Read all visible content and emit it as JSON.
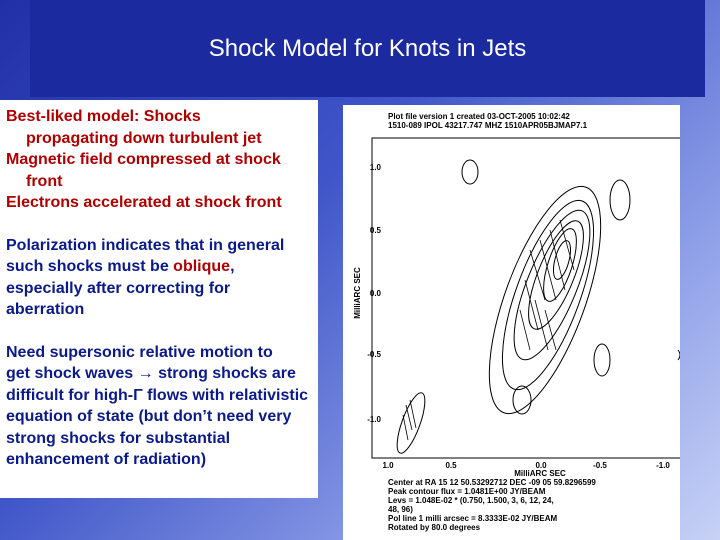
{
  "title": "Shock Model for Knots in Jets",
  "left": {
    "points": [
      {
        "lines": [
          "Best-liked model: Shocks",
          "propagating down turbulent jet"
        ]
      },
      {
        "lines": [
          "Magnetic field compressed at shock",
          "front"
        ]
      },
      {
        "lines": [
          "Electrons accelerated at shock front"
        ]
      }
    ],
    "polarization": {
      "first": "Polarization indicates that in general",
      "before": "such shocks must be ",
      "emphasis": "oblique",
      "after": ",",
      "rest": [
        "especially after correcting for",
        "aberration"
      ]
    },
    "motion": {
      "lines": [
        "Need supersonic relative motion to",
        "get shock waves → strong shocks are",
        "difficult for high-Γ flows with relativistic",
        "equation of state (but don’t need very",
        "strong shocks for substantial",
        "enhancement of radiation)"
      ]
    }
  },
  "figure": {
    "header": [
      "Plot file version 1  created 03-OCT-2005 10:02:42",
      "1510-089  IPOL  43217.747 MHZ  1510APR05BJMAP7.1"
    ],
    "y_label": "MilliARC SEC",
    "y_ticks": [
      "1.0",
      "0.5",
      "0.0",
      "-0.5",
      "-1.0"
    ],
    "x_ticks": [
      "1.0",
      "0.5",
      "0.0",
      "-0.5",
      "-1.0"
    ],
    "x_label": "MilliARC SEC",
    "footer": [
      "Center at RA 15 12 50.53292712  DEC -09 05 59.8296599",
      "Peak contour flux = 1.0481E+00 JY/BEAM",
      "Levs = 1.048E-02 * (0.750, 1.500, 3, 6, 12, 24,",
      "48, 96)",
      "Pol line 1 milli arcsec = 8.3333E-02 JY/BEAM",
      "Rotated by 80.0 degrees"
    ]
  }
}
